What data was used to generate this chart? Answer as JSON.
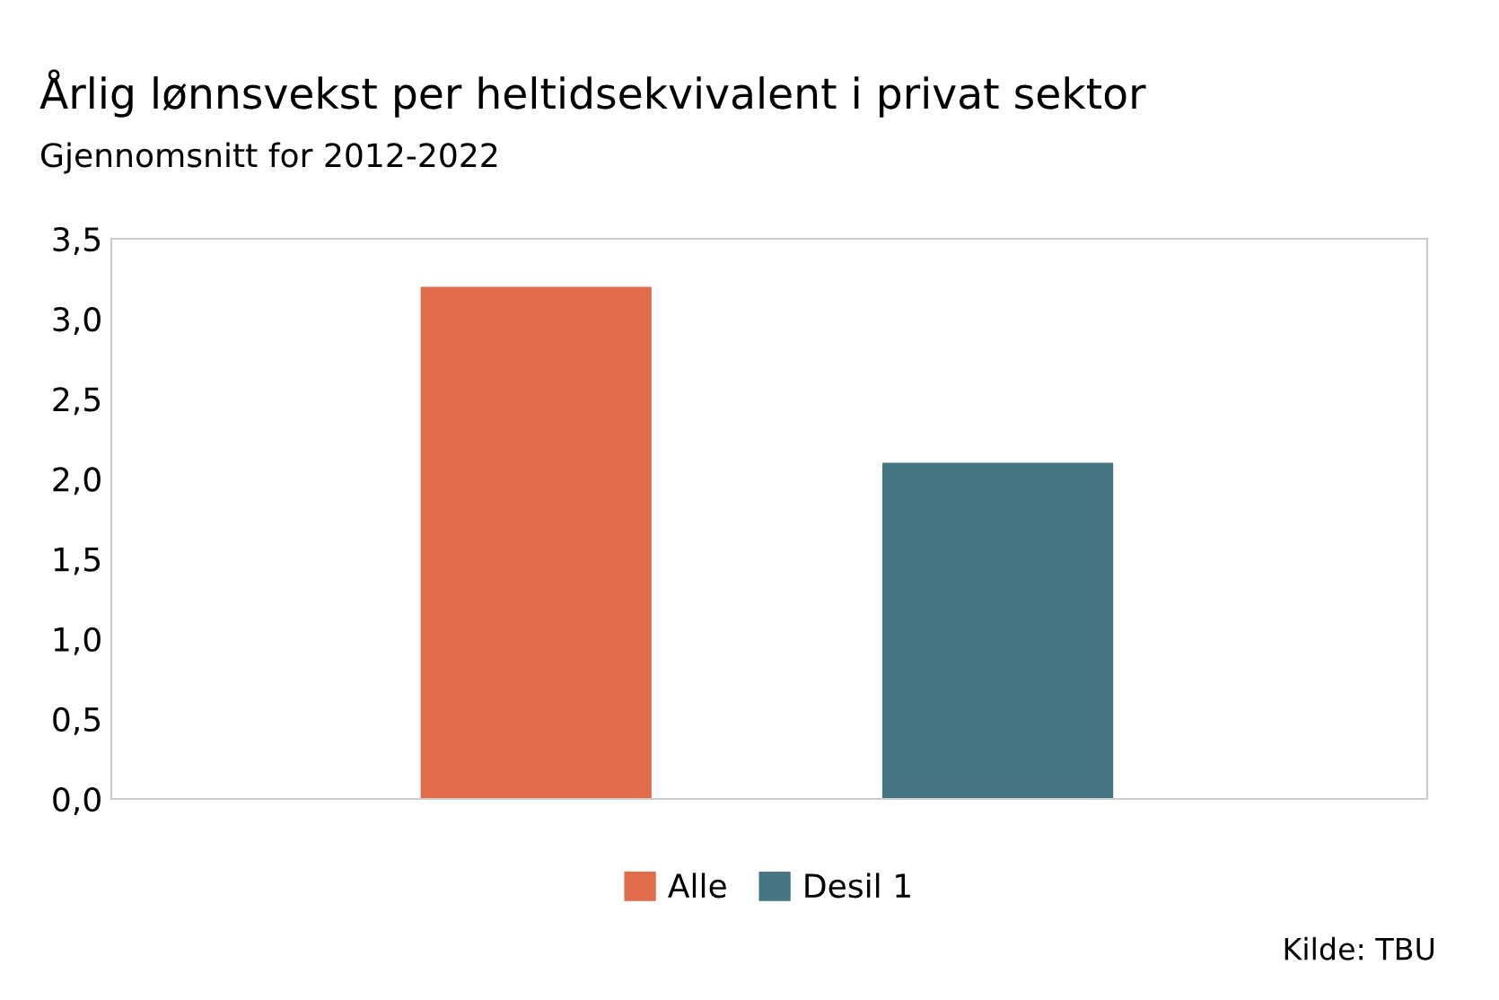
{
  "chart_data": {
    "type": "bar",
    "title": "Årlig lønnsvekst per heltidsekvivalent i privat sektor",
    "subtitle": "Gjennomsnitt for 2012-2022",
    "categories": [
      null,
      null
    ],
    "series": [
      {
        "name": "Alle",
        "color": "#e06c4a",
        "values": [
          3.2,
          null
        ]
      },
      {
        "name": "Desil 1",
        "color": "#467682",
        "values": [
          null,
          2.1
        ]
      }
    ],
    "ylim": [
      0,
      3.5
    ],
    "yticks": [
      {
        "value": 0,
        "label": "0,0"
      },
      {
        "value": 0.5,
        "label": "0,5"
      },
      {
        "value": 1,
        "label": "1,0"
      },
      {
        "value": 1.5,
        "label": "1,5"
      },
      {
        "value": 2,
        "label": "2,0"
      },
      {
        "value": 2.5,
        "label": "2,5"
      },
      {
        "value": 3,
        "label": "3,0"
      },
      {
        "value": 3.5,
        "label": "3,5"
      }
    ],
    "grid": false,
    "legend": "bottom",
    "tick_labels": "y",
    "annotations": [
      "Kilde: TBU"
    ]
  }
}
